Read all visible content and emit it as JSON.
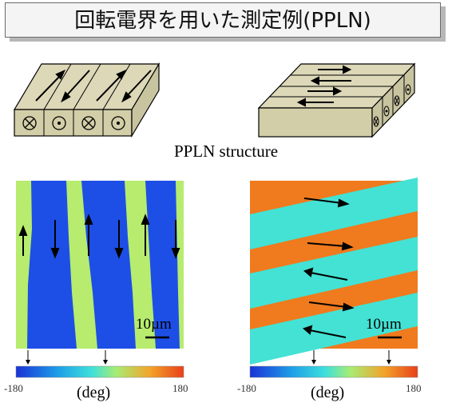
{
  "title": "回転電界を用いた測定例(PPLN)",
  "structure_caption": "PPLN structure",
  "scale_bar_label": "10µm",
  "colorbar": {
    "min_label": "-180",
    "max_label": "180",
    "unit_label": "(deg)"
  },
  "colors": {
    "block_face": "#d6d2b0",
    "map_blue": "#1d4fe6",
    "map_yellow": "#b7ec6e",
    "map_orange": "#f07a1e",
    "map_cyan": "#43e2d4"
  },
  "icons": [
    "cross-symbol",
    "dot-symbol",
    "arrow"
  ]
}
